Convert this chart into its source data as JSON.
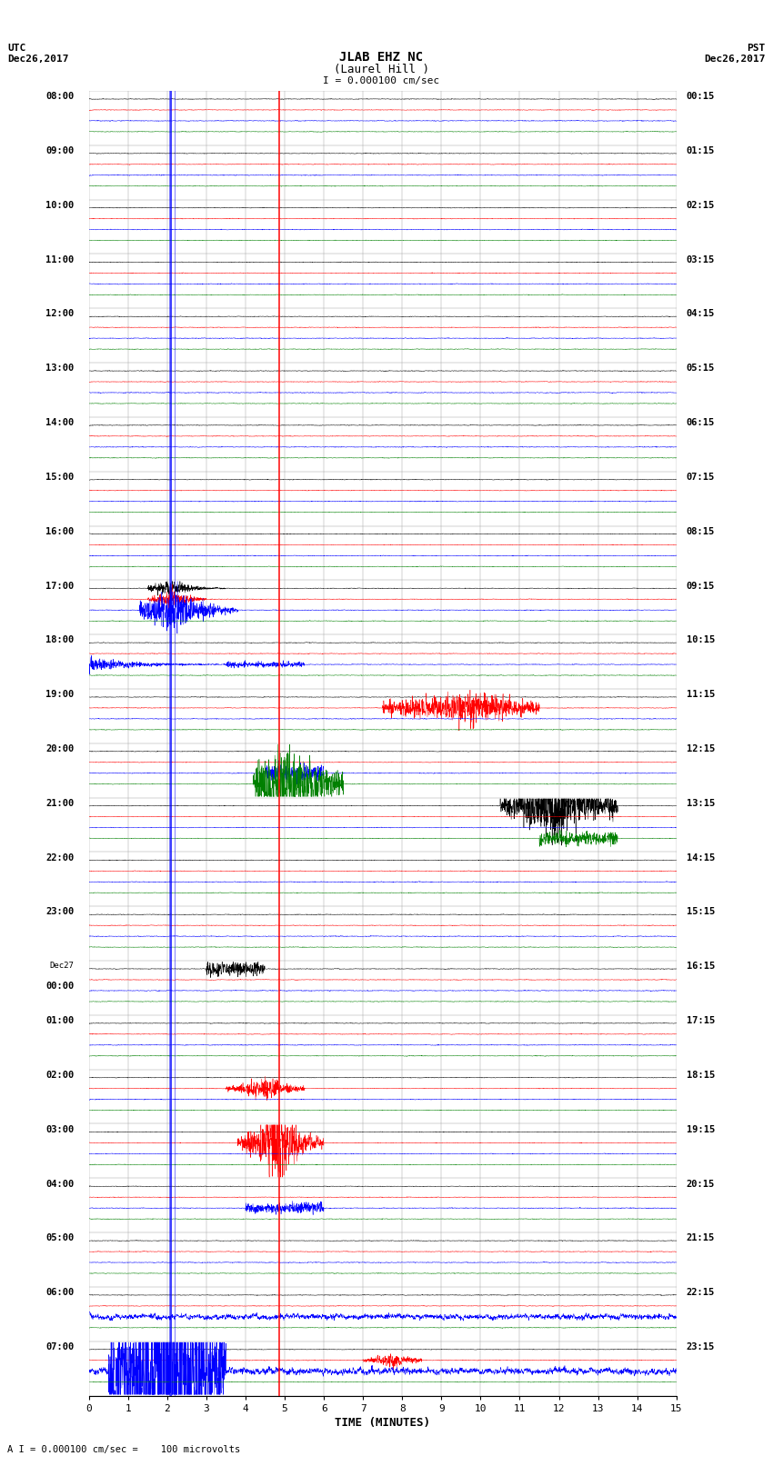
{
  "title_line1": "JLAB EHZ NC",
  "title_line2": "(Laurel Hill )",
  "scale_text": "I = 0.000100 cm/sec",
  "left_label_line1": "UTC",
  "left_label_line2": "Dec26,2017",
  "right_label_line1": "PST",
  "right_label_line2": "Dec26,2017",
  "bottom_label": "A I = 0.000100 cm/sec =    100 microvolts",
  "xlabel": "TIME (MINUTES)",
  "bg_color": "#ffffff",
  "plot_bg_color": "#ffffff",
  "grid_color": "#aaaaaa",
  "trace_colors": [
    "black",
    "red",
    "blue",
    "green"
  ],
  "left_times_utc": [
    "08:00",
    "09:00",
    "10:00",
    "11:00",
    "12:00",
    "13:00",
    "14:00",
    "15:00",
    "16:00",
    "17:00",
    "18:00",
    "19:00",
    "20:00",
    "21:00",
    "22:00",
    "23:00",
    "Dec27\n00:00",
    "01:00",
    "02:00",
    "03:00",
    "04:00",
    "05:00",
    "06:00",
    "07:00"
  ],
  "right_times_pst": [
    "00:15",
    "01:15",
    "02:15",
    "03:15",
    "04:15",
    "05:15",
    "06:15",
    "07:15",
    "08:15",
    "09:15",
    "10:15",
    "11:15",
    "12:15",
    "13:15",
    "14:15",
    "15:15",
    "16:15",
    "17:15",
    "18:15",
    "19:15",
    "20:15",
    "21:15",
    "22:15",
    "23:15"
  ],
  "n_rows": 24,
  "n_traces_per_row": 4,
  "xmin": 0,
  "xmax": 15,
  "x_ticks": [
    0,
    1,
    2,
    3,
    4,
    5,
    6,
    7,
    8,
    9,
    10,
    11,
    12,
    13,
    14,
    15
  ],
  "blue_vline_x": 2.1,
  "red_vline_x": 4.85,
  "n_samples": 3000
}
